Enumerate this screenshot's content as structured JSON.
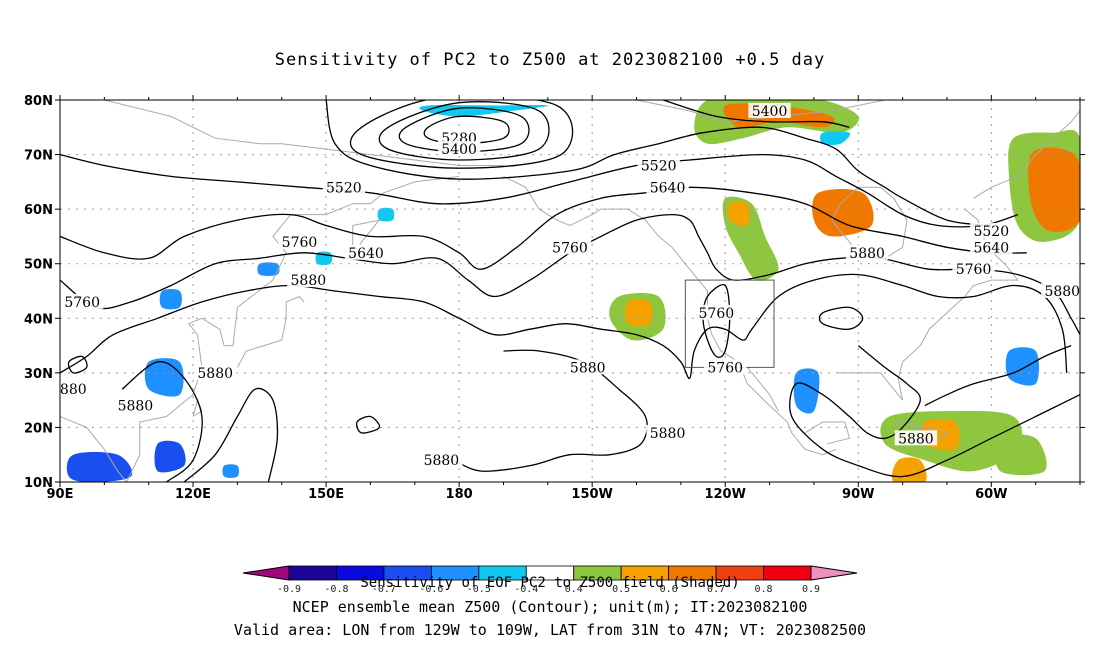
{
  "title": "Sensitivity of PC2 to Z500 at 2023082100 +0.5 day",
  "axes": {
    "lat_labels": [
      "80N",
      "70N",
      "60N",
      "50N",
      "40N",
      "30N",
      "20N",
      "10N"
    ],
    "lat_values": [
      80,
      70,
      60,
      50,
      40,
      30,
      20,
      10
    ],
    "lon_labels": [
      "90E",
      "120E",
      "150E",
      "180",
      "150W",
      "120W",
      "90W",
      "60W"
    ],
    "lon_values": [
      90,
      120,
      150,
      180,
      210,
      240,
      270,
      300
    ],
    "lon_range": [
      90,
      320
    ],
    "lat_range": [
      10,
      80
    ],
    "grid": "dotted"
  },
  "contour_labels": [
    {
      "text": "5400",
      "lon": 250,
      "lat": 78
    },
    {
      "text": "5280",
      "lon": 180,
      "lat": 73
    },
    {
      "text": "5400",
      "lon": 180,
      "lat": 71
    },
    {
      "text": "5520",
      "lon": 154,
      "lat": 64
    },
    {
      "text": "5520",
      "lon": 225,
      "lat": 68
    },
    {
      "text": "5640",
      "lon": 227,
      "lat": 64
    },
    {
      "text": "5640",
      "lon": 159,
      "lat": 52
    },
    {
      "text": "5760",
      "lon": 144,
      "lat": 54
    },
    {
      "text": "5760",
      "lon": 95,
      "lat": 43
    },
    {
      "text": "5760",
      "lon": 205,
      "lat": 53
    },
    {
      "text": "5760",
      "lon": 238,
      "lat": 41
    },
    {
      "text": "5760",
      "lon": 240,
      "lat": 31
    },
    {
      "text": "5880",
      "lon": 146,
      "lat": 47
    },
    {
      "text": "5880",
      "lon": 272,
      "lat": 52
    },
    {
      "text": "5880",
      "lon": 316,
      "lat": 45
    },
    {
      "text": "5880",
      "lon": 209,
      "lat": 31
    },
    {
      "text": "5880",
      "lon": 125,
      "lat": 30
    },
    {
      "text": "5880",
      "lon": 107,
      "lat": 24
    },
    {
      "text": "880",
      "lon": 93,
      "lat": 27
    },
    {
      "text": "5880",
      "lon": 227,
      "lat": 19
    },
    {
      "text": "5880",
      "lon": 176,
      "lat": 14
    },
    {
      "text": "5880",
      "lon": 283,
      "lat": 18
    },
    {
      "text": "5520",
      "lon": 300,
      "lat": 56
    },
    {
      "text": "5640",
      "lon": 300,
      "lat": 53
    },
    {
      "text": "5760",
      "lon": 296,
      "lat": 49
    }
  ],
  "valid_box": {
    "lon_from": 231,
    "lon_to": 251,
    "lat_from": 31,
    "lat_to": 47
  },
  "colorbar": {
    "colors": [
      "#a0067e",
      "#1a0596",
      "#0a0ade",
      "#1a4ef0",
      "#1e90ff",
      "#10c8f0",
      "#ffffff",
      "#8ec63f",
      "#f5a100",
      "#f07800",
      "#f04010",
      "#f00010",
      "#f090c0"
    ],
    "labels": [
      "-0.9",
      "-0.8",
      "-0.7",
      "-0.6",
      "-0.5",
      "-0.4",
      "0.4",
      "0.5",
      "0.6",
      "0.7",
      "0.8",
      "0.9"
    ]
  },
  "footer": {
    "caption": "Sensitivity of EOF PC2 to Z500 field (Shaded)",
    "line2": "NCEP ensemble mean Z500 (Contour); unit(m); IT:2023082100",
    "line3": "Valid area: LON from 129W to 109W, LAT from 31N to 47N; VT: 2023082500"
  }
}
